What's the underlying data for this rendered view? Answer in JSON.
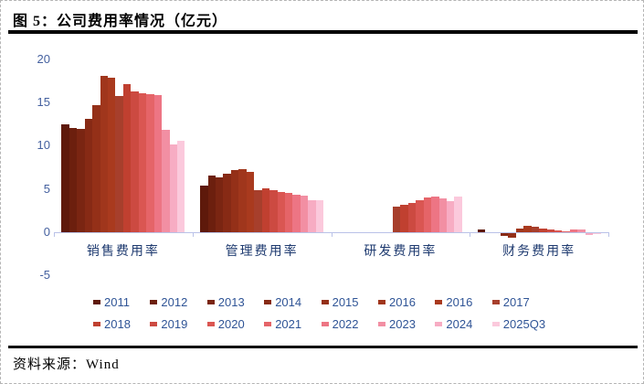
{
  "header": {
    "title": "图 5：公司费用率情况（亿元）"
  },
  "source": {
    "text": "资料来源：Wind"
  },
  "colors": {
    "tick_text": "#44609F",
    "category_text": "#1F3B70",
    "legend_text": "#2F5496",
    "axis_line": "#b9c2e8",
    "rule": "#000000"
  },
  "chart_data": {
    "type": "bar",
    "title": "图 5：公司费用率情况（亿元）",
    "categories": [
      "销售费用率",
      "管理费用率",
      "研发费用率",
      "财务费用率"
    ],
    "ylim": [
      -5,
      20
    ],
    "yticks": [
      20,
      15,
      10,
      5,
      0,
      -5
    ],
    "grid": false,
    "legend_position": "bottom-two-rows",
    "series": [
      {
        "name": "2011",
        "color": "#5E190B",
        "values": [
          12.5,
          5.4,
          null,
          0.25
        ]
      },
      {
        "name": "2012",
        "color": "#6C1F0E",
        "values": [
          12.1,
          6.5,
          null,
          0
        ]
      },
      {
        "name": "2013",
        "color": "#7A2512",
        "values": [
          12.0,
          6.3,
          null,
          0
        ]
      },
      {
        "name": "2014",
        "color": "#872A15",
        "values": [
          13.1,
          6.8,
          null,
          -0.35
        ]
      },
      {
        "name": "2015",
        "color": "#943018",
        "values": [
          14.7,
          7.2,
          null,
          -0.6
        ]
      },
      {
        "name": "2016",
        "color": "#A0361C",
        "values": [
          18.1,
          7.3,
          null,
          0.45
        ]
      },
      {
        "name": "2016",
        "color": "#A93A1E",
        "values": [
          17.9,
          7.0,
          null,
          0.7
        ]
      },
      {
        "name": "2017",
        "color": "#A73F2C",
        "values": [
          15.8,
          4.8,
          2.9,
          0.65
        ]
      },
      {
        "name": "2018",
        "color": "#C04030",
        "values": [
          17.1,
          5.1,
          3.2,
          0.45
        ]
      },
      {
        "name": "2019",
        "color": "#CC4A41",
        "values": [
          16.3,
          4.8,
          3.35,
          0.25
        ]
      },
      {
        "name": "2020",
        "color": "#DA5652",
        "values": [
          16.1,
          4.6,
          3.7,
          0.15
        ]
      },
      {
        "name": "2021",
        "color": "#E56468",
        "values": [
          16.0,
          4.5,
          4.0,
          0.05
        ]
      },
      {
        "name": "2022",
        "color": "#ED7584",
        "values": [
          15.9,
          4.3,
          4.1,
          0.25
        ]
      },
      {
        "name": "2023",
        "color": "#F28FA3",
        "values": [
          11.8,
          4.2,
          3.9,
          0.3
        ]
      },
      {
        "name": "2024",
        "color": "#F7ACC3",
        "values": [
          10.1,
          3.7,
          3.55,
          -0.25
        ]
      },
      {
        "name": "2025Q3",
        "color": "#FBC9DC",
        "values": [
          10.6,
          3.7,
          4.1,
          -0.05
        ]
      }
    ]
  }
}
